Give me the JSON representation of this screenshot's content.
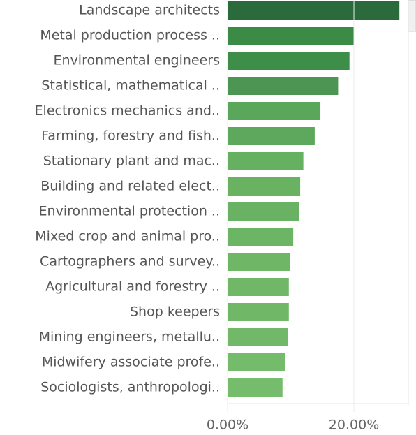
{
  "chart_data": {
    "type": "hbar",
    "categories": [
      "Landscape architects",
      "Metal production process ..",
      "Environmental engineers",
      "Statistical, mathematical ..",
      "Electronics mechanics and..",
      "Farming, forestry and fish..",
      "Stationary plant and mac..",
      "Building and related elect..",
      "Environmental protection ..",
      "Mixed crop and animal pro..",
      "Cartographers and survey..",
      "Agricultural and forestry ..",
      "Shop keepers",
      "Mining engineers, metallu..",
      "Midwifery associate profe..",
      "Sociologists, anthropologi.."
    ],
    "values": [
      27.2,
      20.0,
      19.3,
      17.5,
      14.7,
      13.8,
      12.0,
      11.5,
      11.3,
      10.4,
      9.9,
      9.7,
      9.7,
      9.5,
      9.1,
      8.7
    ],
    "colors": [
      "#2b6b3b",
      "#3b8b46",
      "#3d8e48",
      "#4d9553",
      "#5aa65a",
      "#5da85c",
      "#66b061",
      "#68b262",
      "#69b263",
      "#6cb565",
      "#6fb767",
      "#70b868",
      "#70b868",
      "#71b969",
      "#74bb6b",
      "#76bc6d"
    ],
    "xlim": [
      0,
      29.2
    ],
    "xticks": [
      {
        "value": 0,
        "label": "0.00%"
      },
      {
        "value": 20,
        "label": "20.00%"
      }
    ],
    "grid": true
  }
}
